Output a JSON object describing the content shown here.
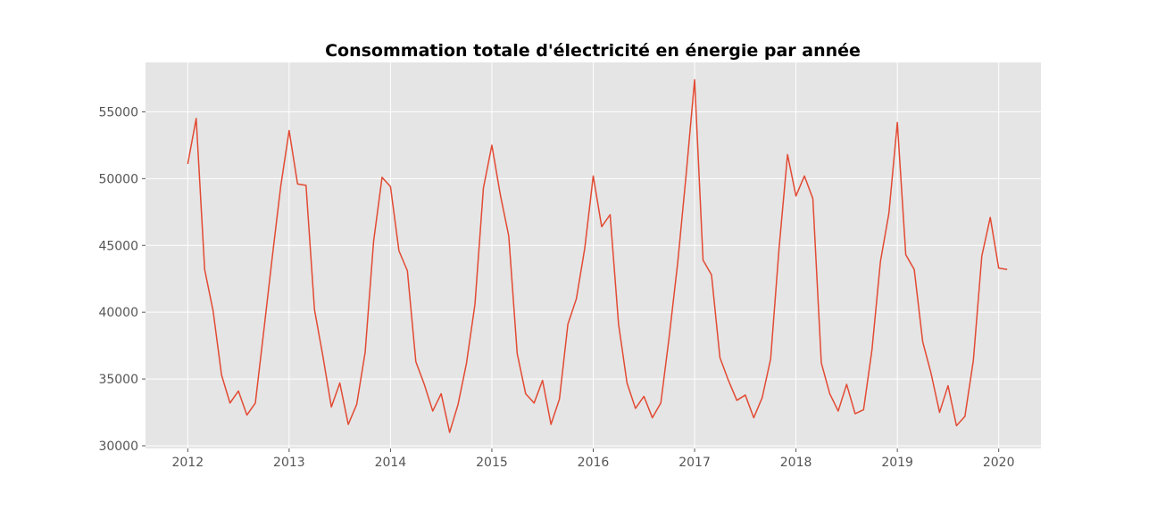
{
  "chart_data": {
    "type": "line",
    "title": "Consommation totale d'électricité en énergie par année",
    "xlabel": "",
    "ylabel": "",
    "x_ticks": [
      "2012",
      "2013",
      "2014",
      "2015",
      "2016",
      "2017",
      "2018",
      "2019",
      "2020"
    ],
    "y_ticks": [
      "30000",
      "35000",
      "40000",
      "45000",
      "50000",
      "55000"
    ],
    "xlim": [
      "2011-08",
      "2020-06"
    ],
    "ylim": [
      29800,
      58700
    ],
    "grid": true,
    "legend": "none",
    "colors": {
      "line": "#e24a33",
      "plot_background": "#e5e5e5",
      "grid": "#ffffff"
    },
    "series": [
      {
        "x": [
          "2012-01",
          "2012-02",
          "2012-03",
          "2012-04",
          "2012-05",
          "2012-06",
          "2012-07",
          "2012-08",
          "2012-09",
          "2012-10",
          "2012-11",
          "2012-12",
          "2013-01",
          "2013-02",
          "2013-03",
          "2013-04",
          "2013-05",
          "2013-06",
          "2013-07",
          "2013-08",
          "2013-09",
          "2013-10",
          "2013-11",
          "2013-12",
          "2014-01",
          "2014-02",
          "2014-03",
          "2014-04",
          "2014-05",
          "2014-06",
          "2014-07",
          "2014-08",
          "2014-09",
          "2014-10",
          "2014-11",
          "2014-12",
          "2015-01",
          "2015-02",
          "2015-03",
          "2015-04",
          "2015-05",
          "2015-06",
          "2015-07",
          "2015-08",
          "2015-09",
          "2015-10",
          "2015-11",
          "2015-12",
          "2016-01",
          "2016-02",
          "2016-03",
          "2016-04",
          "2016-05",
          "2016-06",
          "2016-07",
          "2016-08",
          "2016-09",
          "2016-10",
          "2016-11",
          "2016-12",
          "2017-01",
          "2017-02",
          "2017-03",
          "2017-04",
          "2017-05",
          "2017-06",
          "2017-07",
          "2017-08",
          "2017-09",
          "2017-10",
          "2017-11",
          "2017-12",
          "2018-01",
          "2018-02",
          "2018-03",
          "2018-04",
          "2018-05",
          "2018-06",
          "2018-07",
          "2018-08",
          "2018-09",
          "2018-10",
          "2018-11",
          "2018-12",
          "2019-01",
          "2019-02",
          "2019-03",
          "2019-04",
          "2019-05",
          "2019-06",
          "2019-07",
          "2019-08",
          "2019-09",
          "2019-10",
          "2019-11",
          "2019-12",
          "2020-01",
          "2020-02"
        ],
        "y": [
          51100,
          54500,
          43200,
          40100,
          35300,
          33200,
          34100,
          32300,
          33200,
          38600,
          44100,
          49400,
          53600,
          49600,
          49500,
          40200,
          36700,
          32900,
          34700,
          31600,
          33100,
          37000,
          45300,
          50100,
          49400,
          44600,
          43100,
          36300,
          34600,
          32600,
          33900,
          31000,
          33100,
          36200,
          40600,
          49300,
          52500,
          48800,
          45700,
          36900,
          33900,
          33200,
          34900,
          31600,
          33500,
          39100,
          41000,
          44800,
          50200,
          46400,
          47300,
          39100,
          34700,
          32800,
          33700,
          32100,
          33200,
          38200,
          43700,
          50300,
          57400,
          43900,
          42800,
          36600,
          34900,
          33400,
          33800,
          32100,
          33600,
          36500,
          44800,
          51800,
          48700,
          50200,
          48500,
          36200,
          33900,
          32600,
          34600,
          32400,
          32700,
          37200,
          43800,
          47400,
          54200,
          44300,
          43200,
          37800,
          35400,
          32500,
          34500,
          31500,
          32200,
          36400,
          44200,
          47100,
          43300,
          43200
        ]
      }
    ]
  }
}
